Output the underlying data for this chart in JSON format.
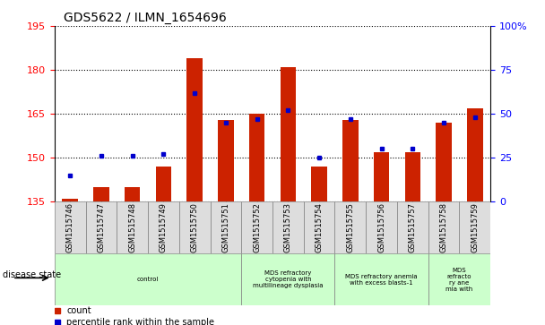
{
  "title": "GDS5622 / ILMN_1654696",
  "samples": [
    "GSM1515746",
    "GSM1515747",
    "GSM1515748",
    "GSM1515749",
    "GSM1515750",
    "GSM1515751",
    "GSM1515752",
    "GSM1515753",
    "GSM1515754",
    "GSM1515755",
    "GSM1515756",
    "GSM1515757",
    "GSM1515758",
    "GSM1515759"
  ],
  "count_values": [
    136,
    140,
    140,
    147,
    184,
    163,
    165,
    181,
    147,
    163,
    152,
    152,
    162,
    167
  ],
  "percentile_values": [
    15,
    26,
    26,
    27,
    62,
    45,
    47,
    52,
    25,
    47,
    30,
    30,
    45,
    48
  ],
  "ymin": 135,
  "ymax": 195,
  "y_ticks": [
    135,
    150,
    165,
    180,
    195
  ],
  "y2min": 0,
  "y2max": 100,
  "y2_ticks": [
    0,
    25,
    50,
    75,
    100
  ],
  "bar_color": "#cc2200",
  "dot_color": "#0000cc",
  "bg_color": "#ffffff",
  "disease_groups": [
    {
      "label": "control",
      "start": 0,
      "end": 6,
      "color": "#ccffcc"
    },
    {
      "label": "MDS refractory\ncytopenia with\nmultilineage dysplasia",
      "start": 6,
      "end": 9,
      "color": "#ccffcc"
    },
    {
      "label": "MDS refractory anemia\nwith excess blasts-1",
      "start": 9,
      "end": 12,
      "color": "#ccffcc"
    },
    {
      "label": "MDS\nrefracto\nry ane\nmia with",
      "start": 12,
      "end": 14,
      "color": "#ccffcc"
    }
  ],
  "disease_state_label": "disease state",
  "legend_count": "count",
  "legend_percentile": "percentile rank within the sample"
}
